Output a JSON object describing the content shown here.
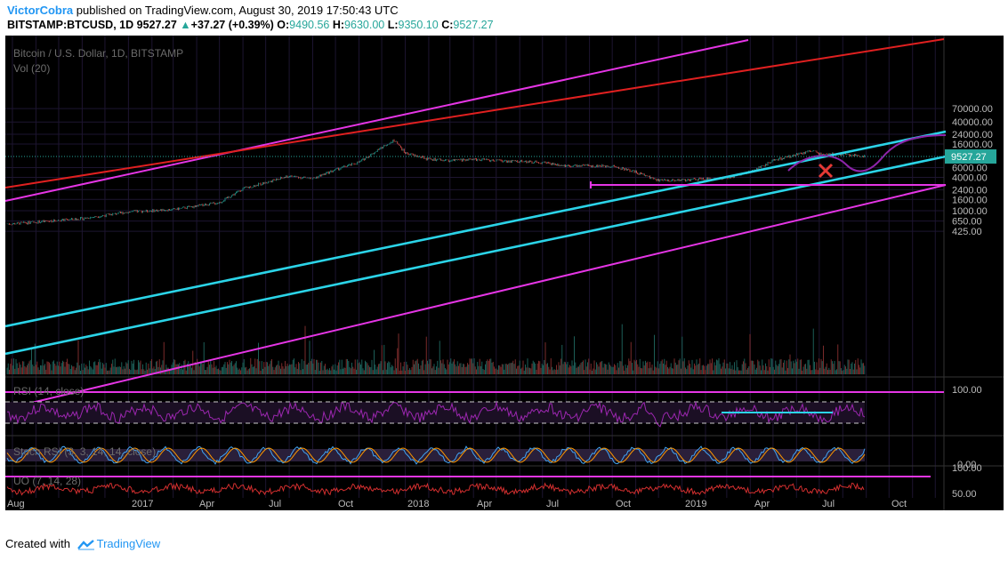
{
  "header": {
    "author": "VictorCobra",
    "published": "published on TradingView.com, August 30, 2019 17:50:43 UTC",
    "symbol": "BITSTAMP:BTCUSD, 1D",
    "last": "9527.27",
    "change": "+37.27 (+0.39%)",
    "o_label": "O:",
    "o": "9490.56",
    "h_label": "H:",
    "h": "9630.00",
    "l_label": "L:",
    "l": "9350.10",
    "c_label": "C:",
    "c": "9527.27"
  },
  "panes": {
    "main_title": "Bitcoin / U.S. Dollar, 1D, BITSTAMP",
    "vol_title": "Vol (20)",
    "rsi_title": "RSI (14, close)",
    "stoch_title": "Stoch RSI (3, 3, 14, 14, close)",
    "uo_title": "UO (7, 14, 28)"
  },
  "footer": {
    "created_with": "Created with",
    "brand": "TradingView"
  },
  "colors": {
    "background": "#000000",
    "up": "#26a69a",
    "down": "#ef5350",
    "magenta": "#e535e5",
    "cyan": "#2bd4e8",
    "red": "#e02020",
    "purple": "#8e24aa",
    "uo": "#d32f2f",
    "price_label_bg": "#26a69a"
  },
  "chart_data": [
    {
      "type": "line",
      "title": "Bitcoin / U.S. Dollar, 1D, BITSTAMP",
      "scale": "log",
      "y_ticks": [
        "70000.00",
        "40000.00",
        "24000.00",
        "16000.00",
        "9527.27",
        "6000.00",
        "4000.00",
        "2400.00",
        "1600.00",
        "1000.00",
        "650.00",
        "425.00"
      ],
      "x_ticks": [
        "Aug",
        "2017",
        "Apr",
        "Jul",
        "Oct",
        "2018",
        "Apr",
        "Jul",
        "Oct",
        "2019",
        "Apr",
        "Jul",
        "Oct"
      ],
      "current_price": "9527.27",
      "series": [
        {
          "x": [
            "2016-08",
            "2016-11",
            "2017-01",
            "2017-03",
            "2017-05",
            "2017-06",
            "2017-08",
            "2017-09",
            "2017-10",
            "2017-11",
            "2017-12-17",
            "2018-01",
            "2018-02",
            "2018-03",
            "2018-04",
            "2018-05",
            "2018-07",
            "2018-08",
            "2018-10",
            "2018-11",
            "2018-12",
            "2019-01",
            "2019-03",
            "2019-04",
            "2019-05",
            "2019-06-26",
            "2019-07",
            "2019-08",
            "2019-08-30"
          ],
          "y": [
            580,
            720,
            950,
            1050,
            1400,
            2500,
            4200,
            3800,
            5500,
            7500,
            19000,
            11000,
            8500,
            8000,
            8500,
            8000,
            7500,
            6500,
            6400,
            5000,
            3500,
            3600,
            3900,
            5000,
            8000,
            12500,
            10500,
            10500,
            9527
          ]
        }
      ]
    },
    {
      "type": "line",
      "title": "RSI (14, close)",
      "y_ticks": [
        "100.00"
      ]
    },
    {
      "type": "line",
      "title": "Stoch RSI (3, 3, 14, 14, close)",
      "y_ticks": [
        "0.00"
      ]
    },
    {
      "type": "line",
      "title": "UO (7, 14, 28)",
      "y_ticks": [
        "100.00",
        "50.00"
      ]
    }
  ]
}
